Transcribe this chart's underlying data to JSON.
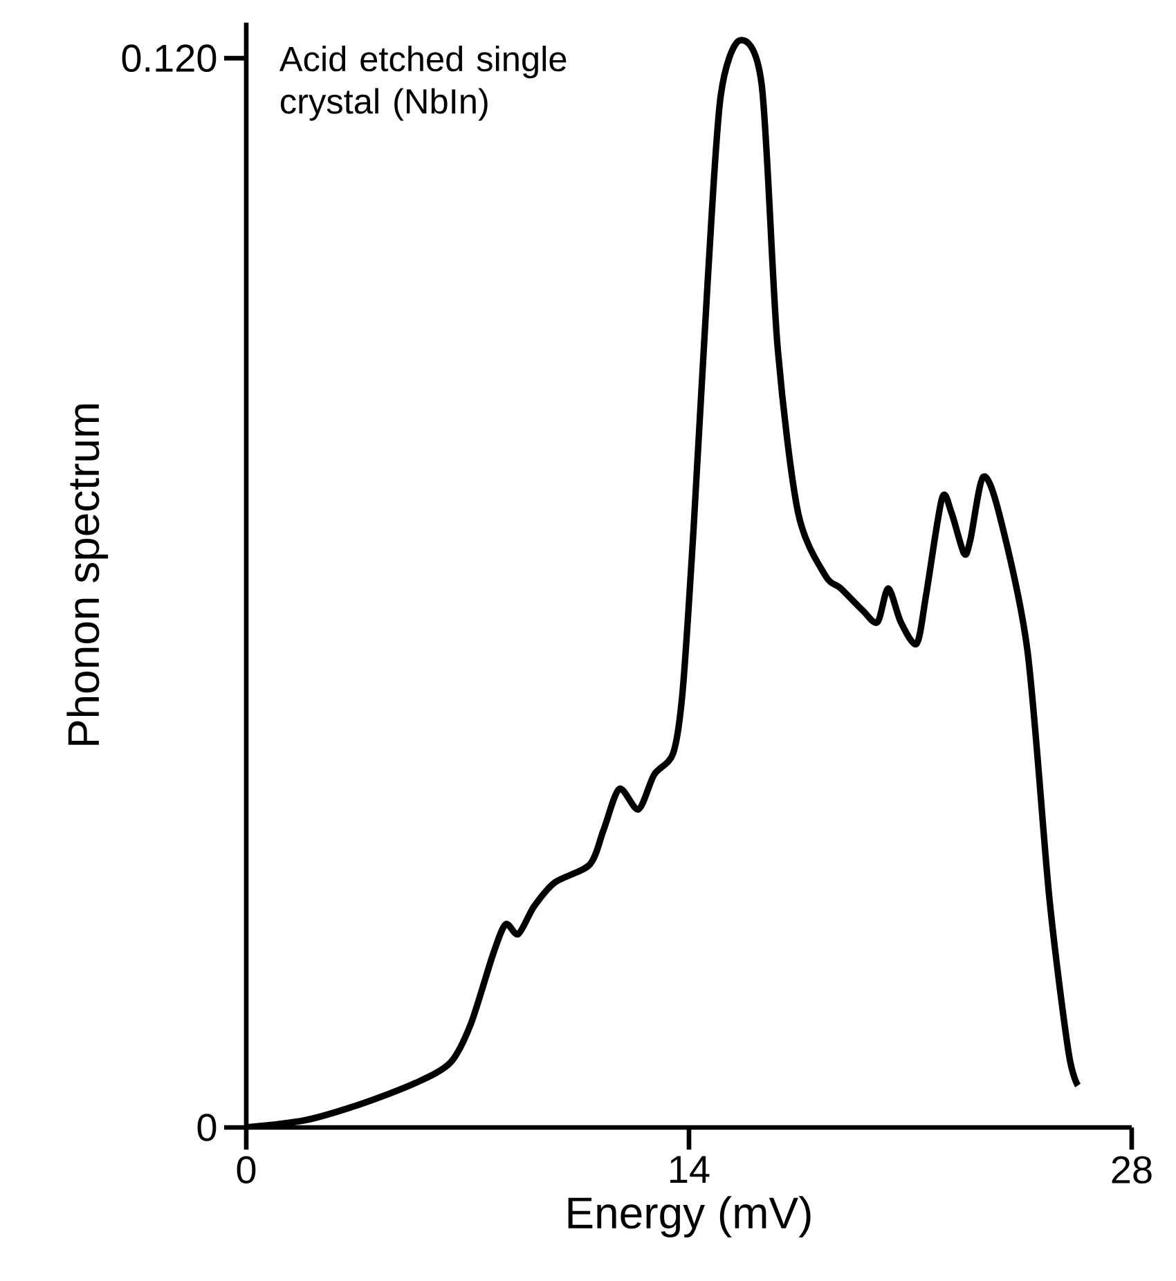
{
  "chart_data": {
    "type": "line",
    "xlabel": "Energy (mV)",
    "ylabel": "Phonon spectrum",
    "annotations": [
      "Acid etched single crystal (NbIn)"
    ],
    "xlim": [
      0,
      28
    ],
    "ylim": [
      0,
      0.124
    ],
    "xticks": [
      0,
      14,
      28
    ],
    "yticks": [
      0,
      {
        "value": 0.12,
        "label": "0.120"
      }
    ],
    "series": [
      {
        "color": "#000000",
        "x": [
          0,
          1.85,
          3.6,
          5.36,
          6.46,
          7.1,
          7.8,
          8.2,
          8.6,
          9.1,
          9.76,
          10.86,
          11.3,
          11.8,
          12.4,
          12.9,
          13.5,
          13.8,
          14.15,
          14.6,
          15.0,
          15.6,
          16.3,
          16.8,
          17.45,
          18.3,
          18.8,
          19.5,
          19.96,
          20.3,
          20.7,
          21.2,
          21.5,
          22.0,
          22.3,
          22.7,
          22.9,
          23.3,
          23.8,
          24.7,
          25.4,
          26.0,
          26.3
        ],
        "values": [
          0,
          0.0008,
          0.0026,
          0.005,
          0.0073,
          0.0116,
          0.0194,
          0.0228,
          0.0217,
          0.0248,
          0.0275,
          0.0295,
          0.0334,
          0.038,
          0.0357,
          0.0396,
          0.042,
          0.049,
          0.0675,
          0.0955,
          0.1157,
          0.122,
          0.117,
          0.0877,
          0.069,
          0.062,
          0.0605,
          0.058,
          0.0567,
          0.0605,
          0.0567,
          0.0543,
          0.0598,
          0.0706,
          0.069,
          0.0644,
          0.066,
          0.073,
          0.069,
          0.0536,
          0.0256,
          0.0085,
          0.0047
        ]
      }
    ]
  }
}
